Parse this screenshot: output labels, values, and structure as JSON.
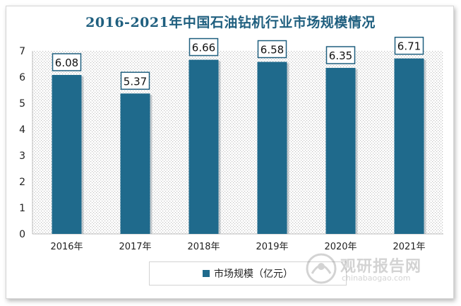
{
  "chart_data": {
    "type": "bar",
    "title": "2016-2021年中国石油钻机行业市场规模情况",
    "categories": [
      "2016年",
      "2017年",
      "2018年",
      "2019年",
      "2020年",
      "2021年"
    ],
    "series": [
      {
        "name": "市场规模（亿元）",
        "values": [
          6.08,
          5.37,
          6.66,
          6.58,
          6.35,
          6.71
        ]
      }
    ],
    "data_labels": [
      "6.08",
      "5.37",
      "6.66",
      "6.58",
      "6.35",
      "6.71"
    ],
    "yticks": [
      "0",
      "1",
      "2",
      "3",
      "4",
      "5",
      "6",
      "7"
    ],
    "ylim": [
      0,
      7
    ],
    "grid": false,
    "legend_position": "bottom",
    "bar_color": "#1f6a8c"
  },
  "watermark": {
    "text": "观研报告网",
    "url": "chinabaogao.com"
  }
}
